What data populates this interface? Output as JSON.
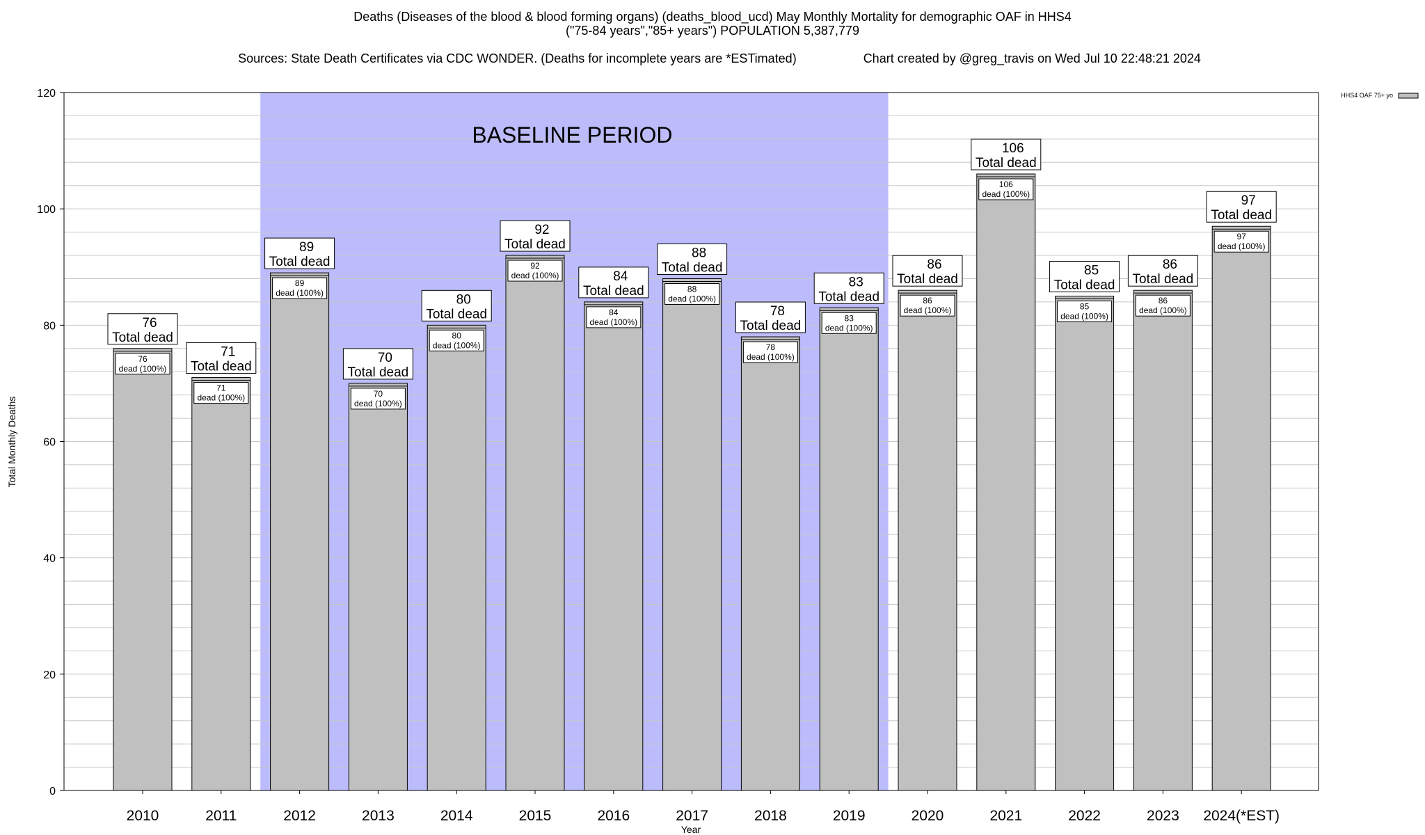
{
  "title": {
    "line1": "Deaths (Diseases of the blood & blood forming organs) (deaths_blood_ucd) May Monthly Mortality for demographic OAF in HHS4",
    "line2": "(\"75-84 years\",\"85+ years\") POPULATION 5,387,779",
    "sources": "Sources: State Death Certificates via CDC WONDER. (Deaths for incomplete years are *ESTimated)",
    "created": "Chart created by @greg_travis on Wed Jul 10 22:48:21 2024"
  },
  "chart_data": {
    "type": "bar",
    "xlabel": "Year",
    "ylabel": "Total Monthly Deaths",
    "ylim": [
      0,
      120
    ],
    "yticks": [
      0,
      20,
      40,
      60,
      80,
      100,
      120
    ],
    "grid": true,
    "categories": [
      "2010",
      "2011",
      "2012",
      "2013",
      "2014",
      "2015",
      "2016",
      "2017",
      "2018",
      "2019",
      "2020",
      "2021",
      "2022",
      "2023",
      "2024(*EST)"
    ],
    "series": [
      {
        "name": "HHS4 OAF 75+ yo",
        "values": [
          76,
          71,
          89,
          70,
          80,
          92,
          84,
          88,
          78,
          83,
          86,
          106,
          85,
          86,
          97
        ]
      }
    ],
    "bar_label": "Total dead",
    "inner_label": "dead (100%)",
    "baseline": {
      "label": "BASELINE PERIOD",
      "from": "2012",
      "to": "2019"
    },
    "legend_position": "top-right",
    "colors": {
      "bar": "#c0c0c0",
      "baseline": "#bcbcfc",
      "grid": "#c8c8c8"
    }
  }
}
